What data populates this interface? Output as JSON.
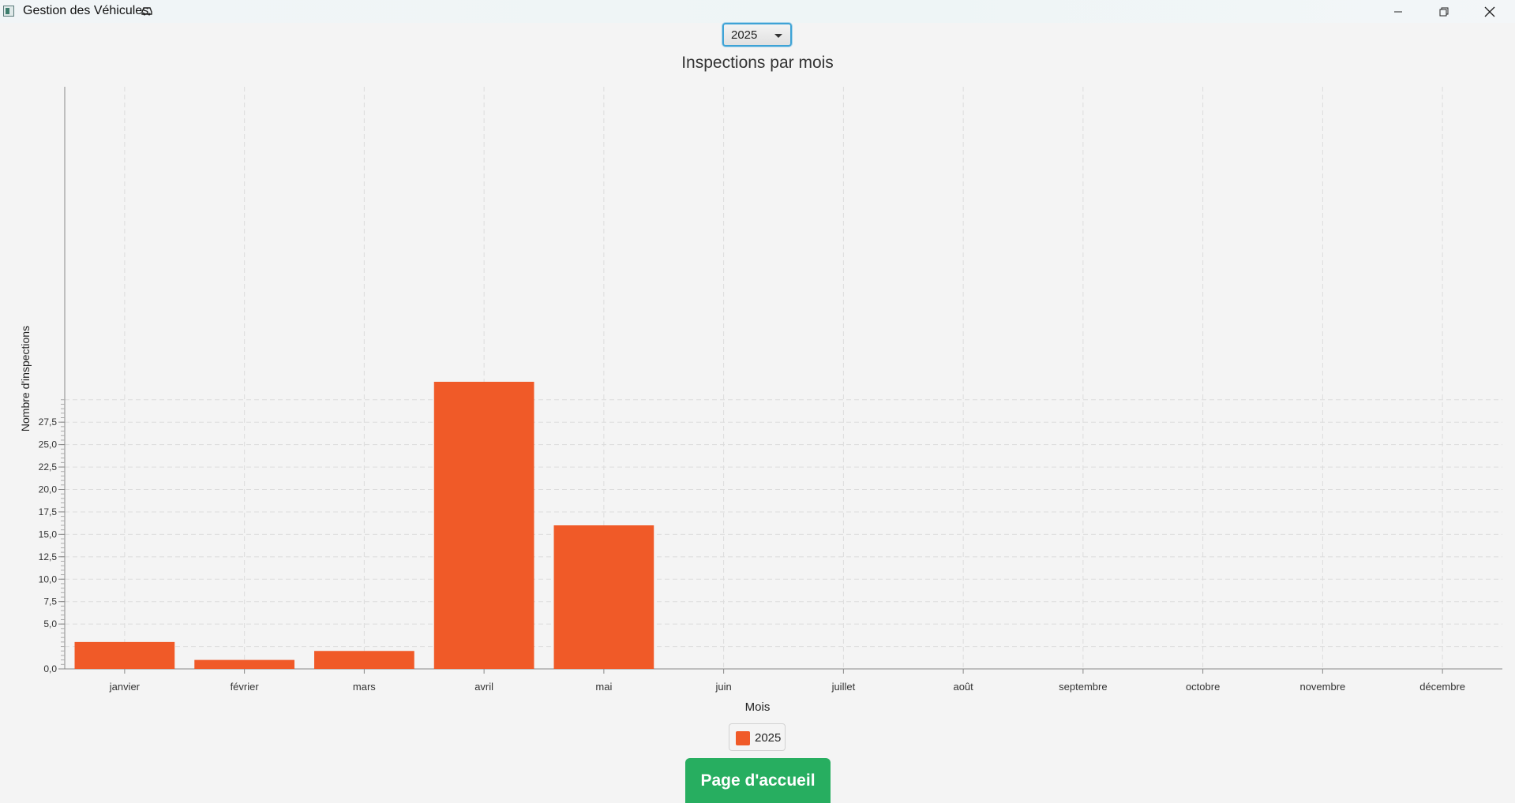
{
  "window": {
    "title": "Gestion des Véhicules",
    "minimize_icon": "minimize-icon",
    "maximize_icon": "restore-icon",
    "close_icon": "close-icon"
  },
  "year_select": {
    "selected": "2025"
  },
  "chart_data": {
    "type": "bar",
    "title": "Inspections par mois",
    "xlabel": "Mois",
    "ylabel": "Nombre d'inspections",
    "categories": [
      "janvier",
      "février",
      "mars",
      "avril",
      "mai",
      "juin",
      "juillet",
      "août",
      "septembre",
      "octobre",
      "novembre",
      "décembre"
    ],
    "series": [
      {
        "name": "2025",
        "values": [
          3,
          1,
          2,
          32,
          16,
          0,
          0,
          0,
          0,
          0,
          0,
          0
        ],
        "color": "#f05a28"
      }
    ],
    "ylim": [
      0,
      32.5
    ],
    "yticks": [
      "0,0",
      "5,0",
      "7,5",
      "10,0",
      "12,5",
      "15,0",
      "17,5",
      "20,0",
      "22,5",
      "25,0",
      "27,5"
    ],
    "ytick_values": [
      0,
      5,
      7.5,
      10,
      12.5,
      15,
      17.5,
      20,
      22.5,
      25,
      27.5
    ],
    "grid": true,
    "legend": "bottom-center"
  },
  "legend": {
    "label": "2025"
  },
  "home_button": {
    "label": "Page d'accueil"
  }
}
